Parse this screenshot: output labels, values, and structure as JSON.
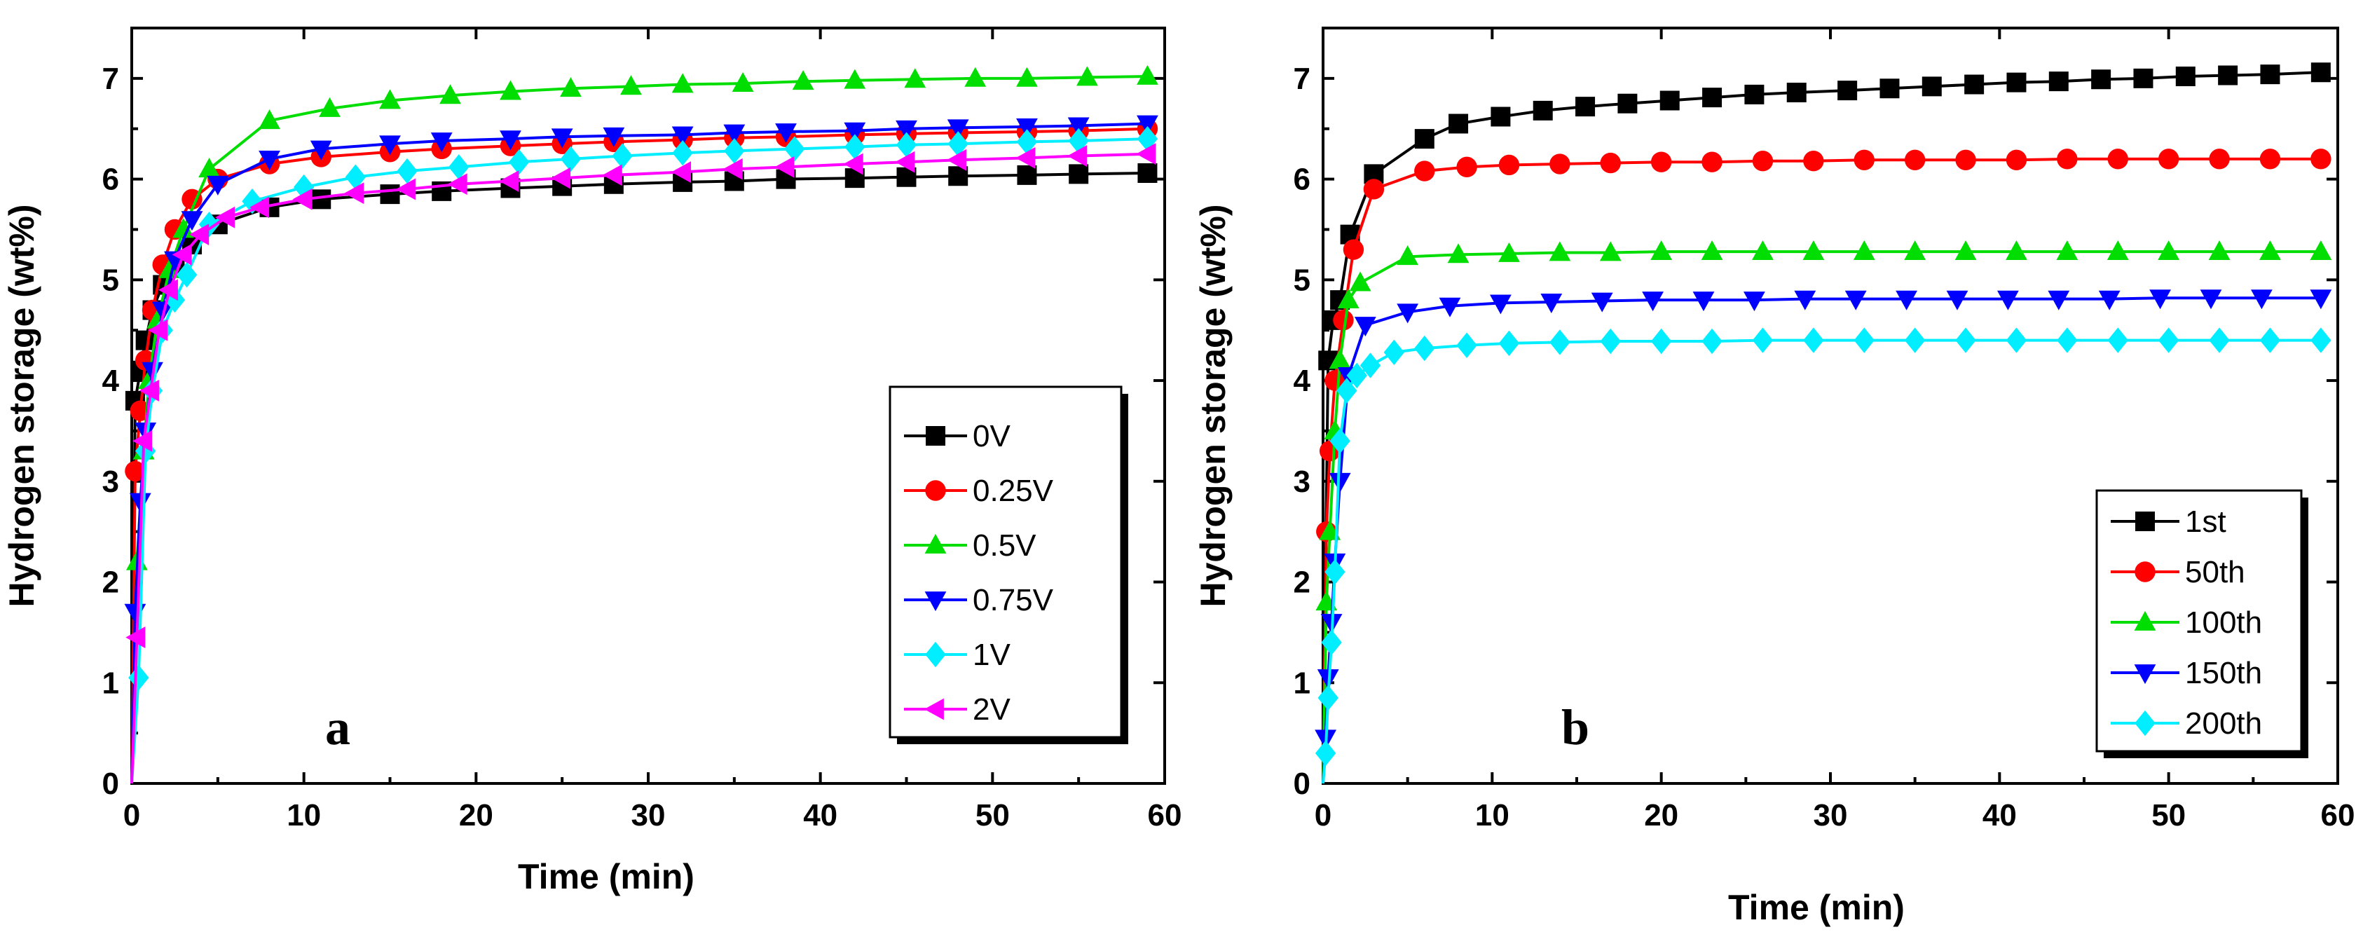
{
  "chart_data": [
    {
      "type": "line",
      "panel_label": "a",
      "xlabel": "Time (min)",
      "ylabel": "Hydrogen storage (wt%)",
      "xlim": [
        0,
        60
      ],
      "ylim": [
        0,
        7.5
      ],
      "xticks": [
        0,
        10,
        20,
        30,
        40,
        50,
        60
      ],
      "yticks": [
        0,
        1,
        2,
        3,
        4,
        5,
        6,
        7
      ],
      "legend_position": "middle-right",
      "series": [
        {
          "name": "0V",
          "color": "#000000",
          "marker": "square",
          "x": [
            0.2,
            0.5,
            0.8,
            1.2,
            1.8,
            2.5,
            3.5,
            5,
            8,
            11,
            15,
            18,
            22,
            25,
            28,
            32,
            35,
            38,
            42,
            45,
            48,
            52,
            55,
            59
          ],
          "y": [
            3.8,
            4.1,
            4.4,
            4.7,
            4.95,
            5.15,
            5.35,
            5.55,
            5.72,
            5.8,
            5.85,
            5.88,
            5.91,
            5.93,
            5.95,
            5.97,
            5.98,
            6.0,
            6.01,
            6.02,
            6.03,
            6.04,
            6.05,
            6.06
          ]
        },
        {
          "name": "0.25V",
          "color": "#ff0000",
          "marker": "circle",
          "x": [
            0.2,
            0.5,
            0.8,
            1.2,
            1.8,
            2.5,
            3.5,
            5,
            8,
            11,
            15,
            18,
            22,
            25,
            28,
            32,
            35,
            38,
            42,
            45,
            48,
            52,
            55,
            59
          ],
          "y": [
            3.1,
            3.7,
            4.2,
            4.7,
            5.15,
            5.5,
            5.8,
            6.0,
            6.15,
            6.22,
            6.27,
            6.3,
            6.33,
            6.35,
            6.37,
            6.39,
            6.41,
            6.42,
            6.44,
            6.45,
            6.46,
            6.47,
            6.48,
            6.5
          ]
        },
        {
          "name": "0.5V",
          "color": "#00dd00",
          "marker": "triangle-up",
          "x": [
            0.3,
            0.7,
            1.0,
            1.5,
            2.2,
            3,
            4.5,
            8,
            11.5,
            15,
            18.5,
            22,
            25.5,
            29,
            32,
            35.5,
            39,
            42,
            45.5,
            49,
            52,
            55.5,
            59
          ],
          "y": [
            2.2,
            3.3,
            4.0,
            4.6,
            5.1,
            5.5,
            6.1,
            6.58,
            6.7,
            6.78,
            6.83,
            6.87,
            6.9,
            6.92,
            6.94,
            6.95,
            6.97,
            6.98,
            6.99,
            7.0,
            7.0,
            7.01,
            7.02
          ]
        },
        {
          "name": "0.75V",
          "color": "#0000ff",
          "marker": "triangle-down",
          "x": [
            0.2,
            0.5,
            0.8,
            1.2,
            1.8,
            2.5,
            3.5,
            5,
            8,
            11,
            15,
            18,
            22,
            25,
            28,
            32,
            35,
            38,
            42,
            45,
            48,
            52,
            55,
            59
          ],
          "y": [
            1.7,
            2.8,
            3.5,
            4.1,
            4.7,
            5.2,
            5.6,
            5.95,
            6.2,
            6.3,
            6.35,
            6.38,
            6.4,
            6.42,
            6.43,
            6.44,
            6.46,
            6.47,
            6.48,
            6.5,
            6.51,
            6.52,
            6.53,
            6.55
          ]
        },
        {
          "name": "1V",
          "color": "#00eeff",
          "marker": "diamond",
          "x": [
            0.4,
            0.8,
            1.2,
            1.8,
            2.5,
            3.2,
            4.5,
            7,
            10,
            13,
            16,
            19,
            22.5,
            25.5,
            28.5,
            32,
            35,
            38.5,
            42,
            45,
            48,
            52,
            55,
            59
          ],
          "y": [
            1.05,
            3.3,
            3.9,
            4.5,
            4.8,
            5.05,
            5.55,
            5.78,
            5.92,
            6.02,
            6.08,
            6.12,
            6.17,
            6.2,
            6.23,
            6.26,
            6.28,
            6.3,
            6.32,
            6.34,
            6.35,
            6.37,
            6.38,
            6.4
          ]
        },
        {
          "name": "2V",
          "color": "#ff00ff",
          "marker": "triangle-left",
          "x": [
            0.3,
            0.7,
            1.1,
            1.6,
            2.2,
            3,
            4,
            5.5,
            7.5,
            10,
            13,
            16,
            19,
            22,
            25,
            28,
            32,
            35,
            38,
            42,
            45,
            48,
            52,
            55,
            59
          ],
          "y": [
            1.45,
            3.4,
            3.9,
            4.5,
            4.9,
            5.25,
            5.45,
            5.62,
            5.72,
            5.8,
            5.86,
            5.9,
            5.95,
            5.98,
            6.01,
            6.04,
            6.07,
            6.1,
            6.12,
            6.15,
            6.17,
            6.19,
            6.21,
            6.23,
            6.25
          ]
        }
      ],
      "legend": [
        "0V",
        "0.25V",
        "0.5V",
        "0.75V",
        "1V",
        "2V"
      ]
    },
    {
      "type": "line",
      "panel_label": "b",
      "xlabel": "Time (min)",
      "ylabel": "Hydrogen storage (wt%)",
      "xlim": [
        0,
        60
      ],
      "ylim": [
        0,
        7.5
      ],
      "xticks": [
        0,
        10,
        20,
        30,
        40,
        50,
        60
      ],
      "yticks": [
        0,
        1,
        2,
        3,
        4,
        5,
        6,
        7
      ],
      "legend_position": "bottom-right",
      "series": [
        {
          "name": "1st",
          "color": "#000000",
          "marker": "square",
          "x": [
            0.3,
            0.6,
            1.0,
            1.6,
            3,
            6,
            8,
            10.5,
            13,
            15.5,
            18,
            20.5,
            23,
            25.5,
            28,
            31,
            33.5,
            36,
            38.5,
            41,
            43.5,
            46,
            48.5,
            51,
            53.5,
            56,
            59
          ],
          "y": [
            4.2,
            4.6,
            4.8,
            5.45,
            6.05,
            6.4,
            6.55,
            6.62,
            6.68,
            6.72,
            6.75,
            6.78,
            6.81,
            6.84,
            6.86,
            6.88,
            6.9,
            6.92,
            6.94,
            6.96,
            6.97,
            6.99,
            7.0,
            7.02,
            7.03,
            7.04,
            7.06
          ]
        },
        {
          "name": "50th",
          "color": "#ff0000",
          "marker": "circle",
          "x": [
            0.2,
            0.4,
            0.7,
            1.2,
            1.8,
            3,
            6,
            8.5,
            11,
            14,
            17,
            20,
            23,
            26,
            29,
            32,
            35,
            38,
            41,
            44,
            47,
            50,
            53,
            56,
            59
          ],
          "y": [
            2.5,
            3.3,
            4.0,
            4.6,
            5.3,
            5.9,
            6.08,
            6.12,
            6.14,
            6.15,
            6.16,
            6.17,
            6.17,
            6.18,
            6.18,
            6.19,
            6.19,
            6.19,
            6.19,
            6.2,
            6.2,
            6.2,
            6.2,
            6.2,
            6.2
          ]
        },
        {
          "name": "100th",
          "color": "#00dd00",
          "marker": "triangle-up",
          "x": [
            0.2,
            0.4,
            0.7,
            1.0,
            1.5,
            2.2,
            5,
            8,
            11,
            14,
            17,
            20,
            23,
            26,
            29,
            32,
            35,
            38,
            41,
            44,
            47,
            50,
            53,
            56,
            59
          ],
          "y": [
            1.8,
            2.5,
            3.5,
            4.2,
            4.8,
            4.97,
            5.23,
            5.25,
            5.26,
            5.27,
            5.27,
            5.28,
            5.28,
            5.28,
            5.28,
            5.28,
            5.28,
            5.28,
            5.28,
            5.28,
            5.28,
            5.28,
            5.28,
            5.28,
            5.28
          ]
        },
        {
          "name": "150th",
          "color": "#0000ff",
          "marker": "triangle-down",
          "x": [
            0.15,
            0.3,
            0.5,
            0.7,
            1.0,
            1.5,
            2.5,
            5,
            7.5,
            10.5,
            13.5,
            16.5,
            19.5,
            22.5,
            25.5,
            28.5,
            31.5,
            34.5,
            37.5,
            40.5,
            43.5,
            46.5,
            49.5,
            52.5,
            55.5,
            59
          ],
          "y": [
            0.45,
            1.05,
            1.6,
            2.2,
            3.0,
            4.05,
            4.55,
            4.68,
            4.74,
            4.77,
            4.78,
            4.79,
            4.8,
            4.8,
            4.8,
            4.81,
            4.81,
            4.81,
            4.81,
            4.81,
            4.81,
            4.81,
            4.82,
            4.82,
            4.82,
            4.82
          ]
        },
        {
          "name": "200th",
          "color": "#00eeff",
          "marker": "diamond",
          "x": [
            0.15,
            0.3,
            0.5,
            0.7,
            1.0,
            1.4,
            2,
            2.8,
            4.2,
            6,
            8.5,
            11,
            14,
            17,
            20,
            23,
            26,
            29,
            32,
            35,
            38,
            41,
            44,
            47,
            50,
            53,
            56,
            59
          ],
          "y": [
            0.3,
            0.85,
            1.4,
            2.1,
            3.4,
            3.9,
            4.05,
            4.15,
            4.28,
            4.32,
            4.35,
            4.37,
            4.38,
            4.39,
            4.39,
            4.39,
            4.4,
            4.4,
            4.4,
            4.4,
            4.4,
            4.4,
            4.4,
            4.4,
            4.4,
            4.4,
            4.4,
            4.4
          ]
        }
      ],
      "legend": [
        "1st",
        "50th",
        "100th",
        "150th",
        "200th"
      ]
    }
  ]
}
